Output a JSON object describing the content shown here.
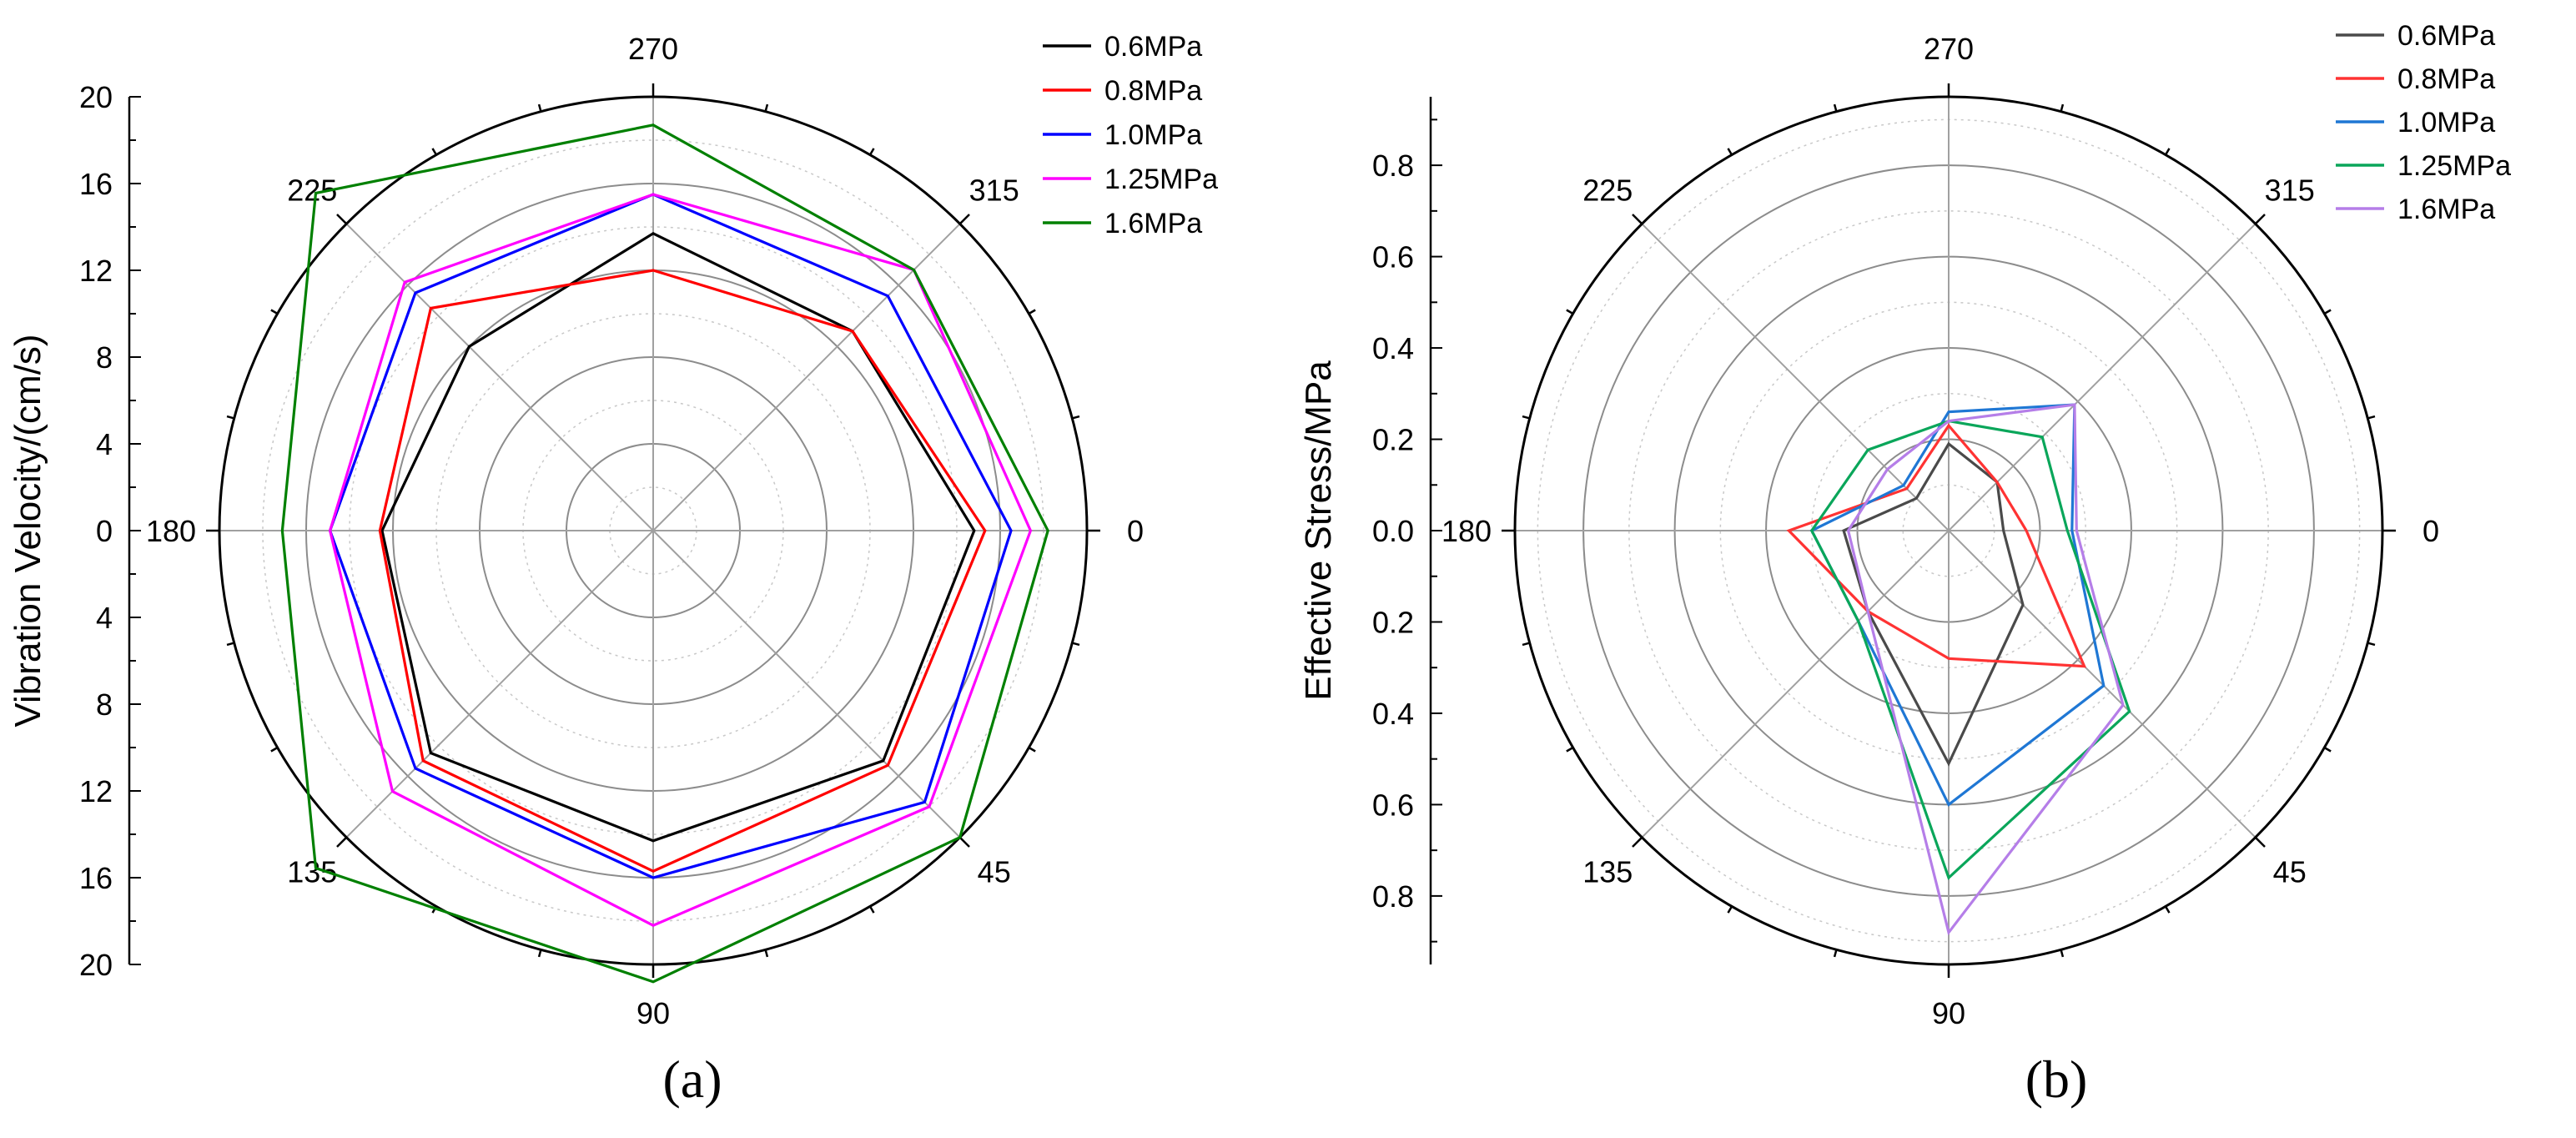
{
  "figure": {
    "panel_a_caption": "(a)",
    "panel_b_caption": "(b)"
  },
  "chart_data": [
    {
      "type": "radar",
      "panel": "a",
      "ylabel": "Vibration Velocity/(cm/s)",
      "rlim": [
        0,
        20
      ],
      "r_ticks": [
        0,
        4,
        8,
        12,
        16,
        20
      ],
      "angles": [
        0,
        45,
        90,
        135,
        180,
        225,
        270,
        315
      ],
      "angle_labels": [
        "0",
        "45",
        "90",
        "135",
        "180",
        "225",
        "270",
        "315"
      ],
      "grid": true,
      "legend_position": "top-right",
      "series": [
        {
          "name": "0.6MPa",
          "color": "#000000",
          "values": [
            14.8,
            15.0,
            14.3,
            14.5,
            12.5,
            12.0,
            13.7,
            13.0
          ]
        },
        {
          "name": "0.8MPa",
          "color": "#ff0000",
          "values": [
            15.3,
            15.3,
            15.7,
            15.0,
            12.6,
            14.5,
            12.0,
            13.0
          ]
        },
        {
          "name": "1.0MPa",
          "color": "#0000ff",
          "values": [
            16.5,
            17.7,
            16.0,
            15.5,
            14.9,
            15.5,
            15.5,
            15.3
          ]
        },
        {
          "name": "1.25MPa",
          "color": "#ff00ff",
          "values": [
            17.4,
            18.0,
            18.2,
            17.0,
            14.9,
            16.2,
            15.5,
            17.0
          ]
        },
        {
          "name": "1.6MPa",
          "color": "#008000",
          "values": [
            18.2,
            20.0,
            20.8,
            22.0,
            17.1,
            22.0,
            18.7,
            17.0
          ]
        }
      ]
    },
    {
      "type": "radar",
      "panel": "b",
      "ylabel": "Effective Stress/MPa",
      "rlim": [
        0,
        0.95
      ],
      "r_ticks": [
        0.0,
        0.2,
        0.4,
        0.6,
        0.8
      ],
      "angles": [
        0,
        45,
        90,
        135,
        180,
        225,
        270,
        315
      ],
      "angle_labels": [
        "0",
        "45",
        "90",
        "135",
        "180",
        "225",
        "270",
        "315"
      ],
      "grid": true,
      "legend_position": "top-right",
      "series": [
        {
          "name": "0.6MPa",
          "color": "#4a4a4a",
          "values": [
            0.12,
            0.23,
            0.51,
            0.25,
            0.23,
            0.1,
            0.19,
            0.15
          ]
        },
        {
          "name": "0.8MPa",
          "color": "#ff3333",
          "values": [
            0.17,
            0.42,
            0.28,
            0.25,
            0.35,
            0.13,
            0.23,
            0.15
          ]
        },
        {
          "name": "1.0MPa",
          "color": "#1f77d4",
          "values": [
            0.27,
            0.48,
            0.6,
            0.28,
            0.3,
            0.14,
            0.26,
            0.39
          ]
        },
        {
          "name": "1.25MPa",
          "color": "#0aa65a",
          "values": [
            0.26,
            0.56,
            0.76,
            0.28,
            0.3,
            0.25,
            0.24,
            0.29
          ]
        },
        {
          "name": "1.6MPa",
          "color": "#b57ee8",
          "values": [
            0.28,
            0.54,
            0.88,
            0.25,
            0.22,
            0.19,
            0.24,
            0.39
          ]
        }
      ]
    }
  ]
}
